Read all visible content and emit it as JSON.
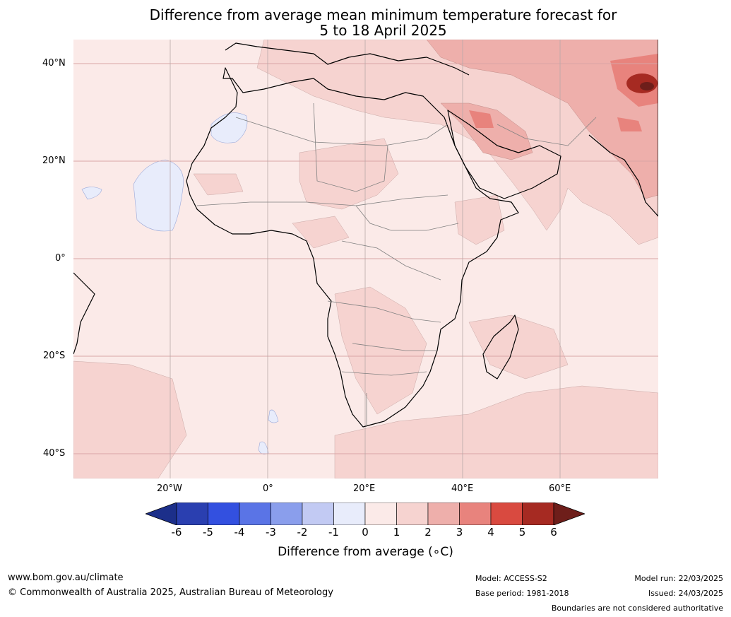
{
  "title": {
    "line1": "Difference from average mean minimum temperature forecast for",
    "line2": "5 to 18 April 2025"
  },
  "map": {
    "lat_labels": [
      "40°N",
      "20°N",
      "0°",
      "20°S",
      "40°S"
    ],
    "lon_labels": [
      "20°W",
      "0°",
      "20°E",
      "40°E",
      "60°E"
    ],
    "background_color": "#fbeae8",
    "gridline_color": "#d9a6a6"
  },
  "colorbar": {
    "ticks": [
      "-6",
      "-5",
      "-4",
      "-3",
      "-2",
      "-1",
      "0",
      "1",
      "2",
      "3",
      "4",
      "5",
      "6"
    ],
    "colors": [
      "#1c2f8a",
      "#2a3fb0",
      "#3350e0",
      "#5a74e6",
      "#8a9eec",
      "#c2caf3",
      "#e8ecfb",
      "#fbeae8",
      "#f6d3d0",
      "#eeafab",
      "#e8837d",
      "#d94a40",
      "#a62a22",
      "#6e1e1a"
    ],
    "label": "Difference from average (∘C)"
  },
  "footer": {
    "website": "www.bom.gov.au/climate",
    "copyright": "© Commonwealth of Australia 2025, Australian Bureau of Meteorology",
    "model": "Model: ACCESS-S2",
    "base_period": "Base period: 1981-2018",
    "model_run": "Model run: 22/03/2025",
    "issued": "Issued: 24/03/2025",
    "boundaries": "Boundaries are not considered authoritative"
  }
}
